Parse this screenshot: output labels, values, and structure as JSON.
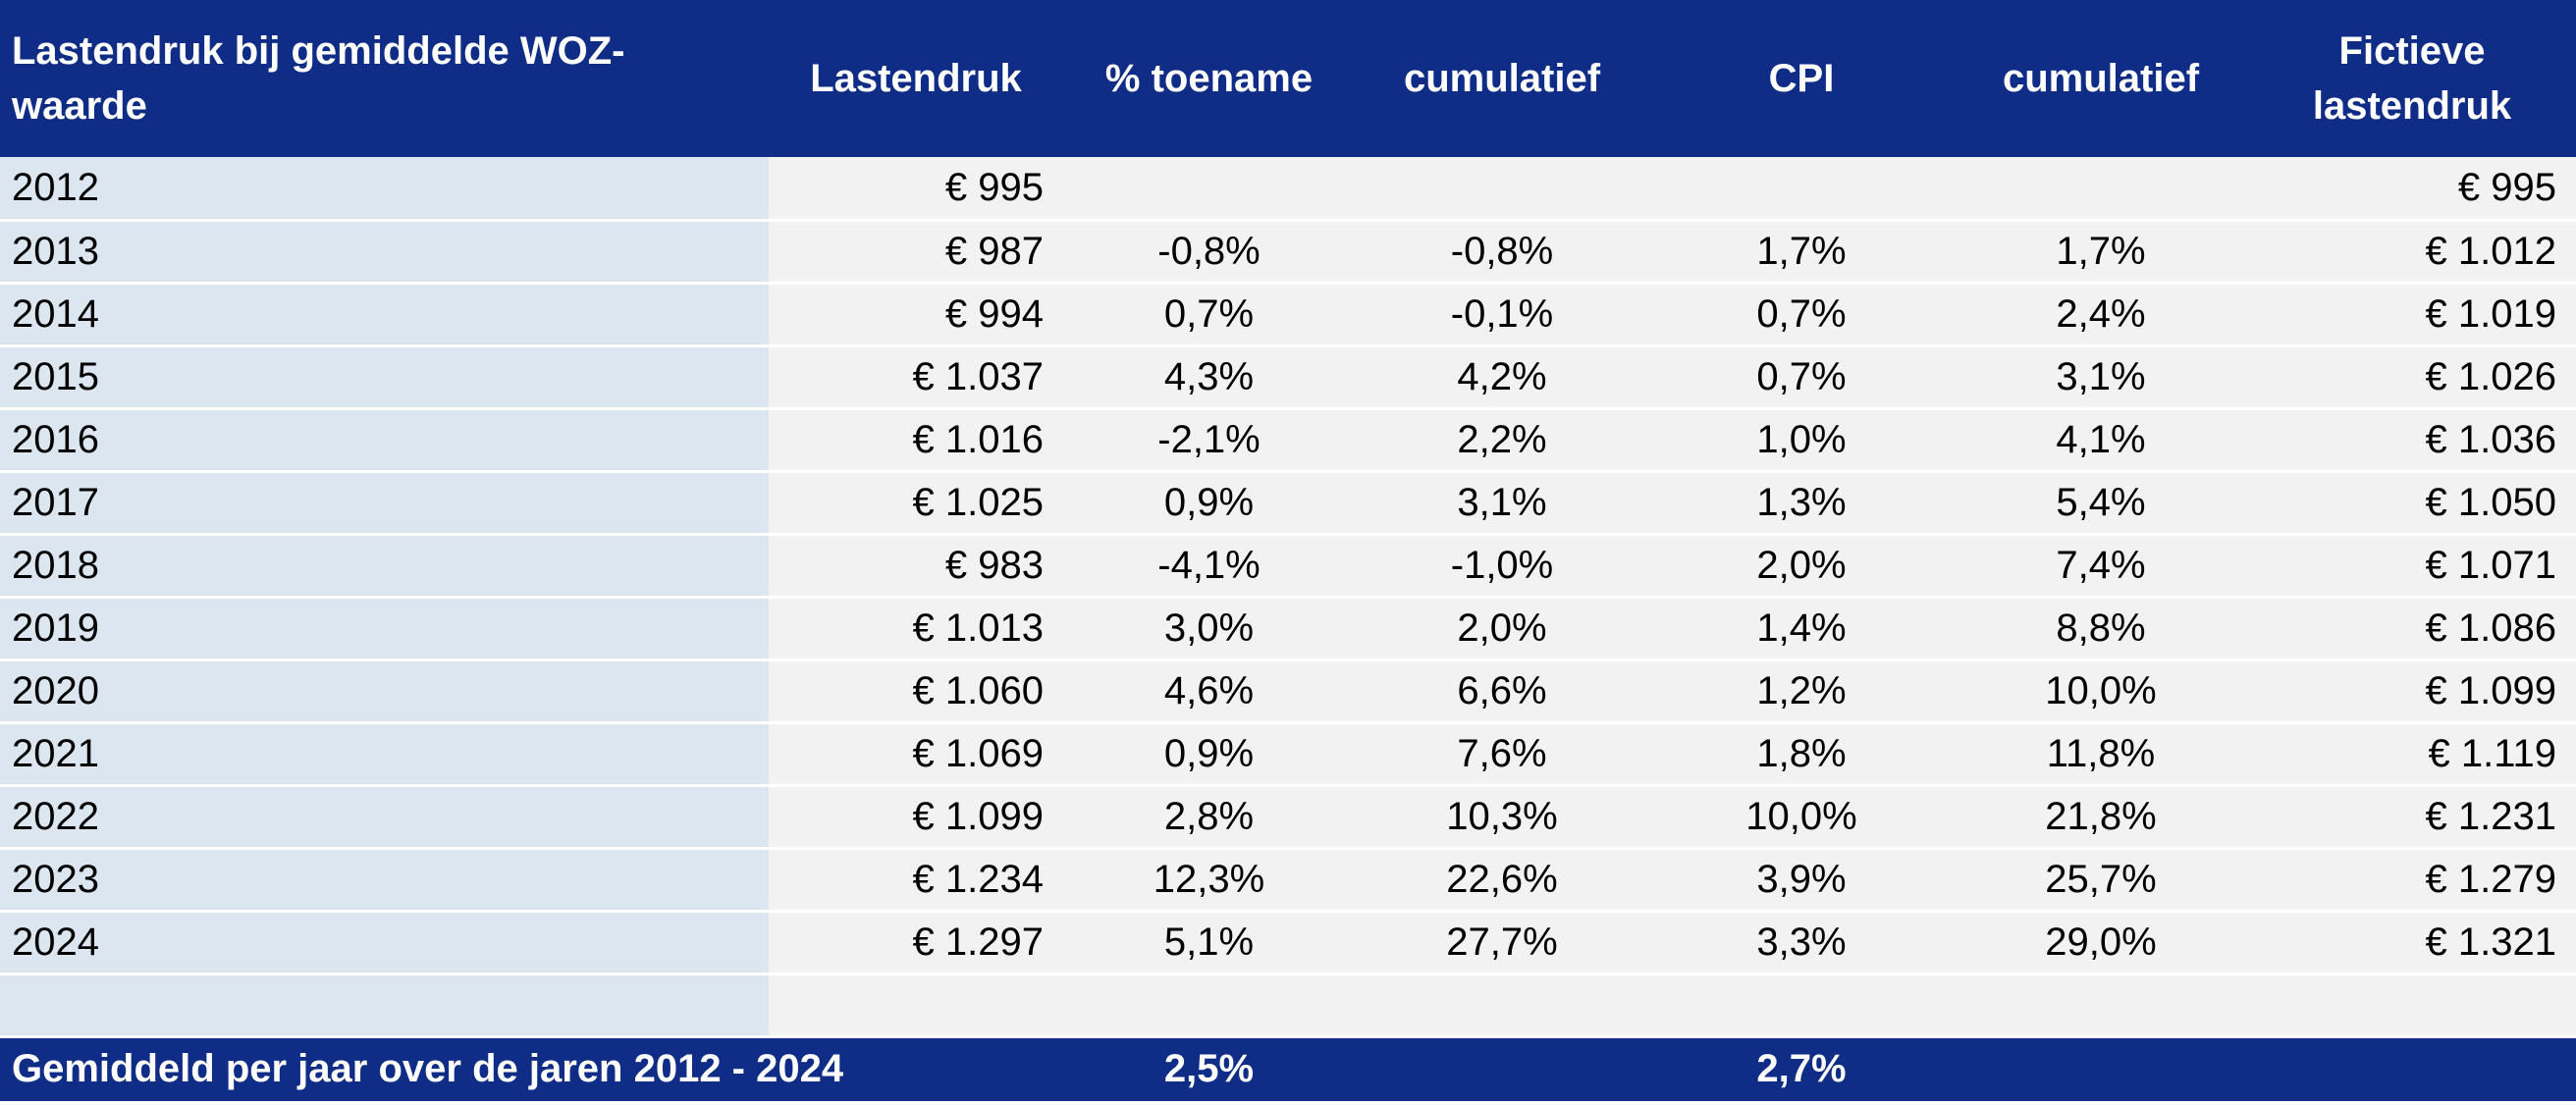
{
  "table": {
    "header": [
      "Lastendruk bij gemiddelde WOZ-waarde",
      "Lastendruk",
      "% toename",
      "cumulatief",
      "CPI",
      "cumulatief",
      "Fictieve lastendruk"
    ],
    "rows": [
      [
        "2012",
        "€ 995",
        null,
        null,
        null,
        null,
        "€ 995"
      ],
      [
        "2013",
        "€ 987",
        "-0,8%",
        "-0,8%",
        "1,7%",
        "1,7%",
        "€ 1.012"
      ],
      [
        "2014",
        "€ 994",
        "0,7%",
        "-0,1%",
        "0,7%",
        "2,4%",
        "€ 1.019"
      ],
      [
        "2015",
        "€ 1.037",
        "4,3%",
        "4,2%",
        "0,7%",
        "3,1%",
        "€ 1.026"
      ],
      [
        "2016",
        "€ 1.016",
        "-2,1%",
        "2,2%",
        "1,0%",
        "4,1%",
        "€ 1.036"
      ],
      [
        "2017",
        "€ 1.025",
        "0,9%",
        "3,1%",
        "1,3%",
        "5,4%",
        "€ 1.050"
      ],
      [
        "2018",
        "€ 983",
        "-4,1%",
        "-1,0%",
        "2,0%",
        "7,4%",
        "€ 1.071"
      ],
      [
        "2019",
        "€ 1.013",
        "3,0%",
        "2,0%",
        "1,4%",
        "8,8%",
        "€ 1.086"
      ],
      [
        "2020",
        "€ 1.060",
        "4,6%",
        "6,6%",
        "1,2%",
        "10,0%",
        "€ 1.099"
      ],
      [
        "2021",
        "€ 1.069",
        "0,9%",
        "7,6%",
        "1,8%",
        "11,8%",
        "€ 1.119"
      ],
      [
        "2022",
        "€ 1.099",
        "2,8%",
        "10,3%",
        "10,0%",
        "21,8%",
        "€ 1.231"
      ],
      [
        "2023",
        "€ 1.234",
        "12,3%",
        "22,6%",
        "3,9%",
        "25,7%",
        "€ 1.279"
      ],
      [
        "2024",
        "€ 1.297",
        "5,1%",
        "27,7%",
        "3,3%",
        "29,0%",
        "€ 1.321"
      ]
    ],
    "footer": {
      "label": "Gemiddeld per jaar over de jaren 2012 - 2024",
      "toename": "2,5%",
      "cpi": "2,7%"
    }
  }
}
